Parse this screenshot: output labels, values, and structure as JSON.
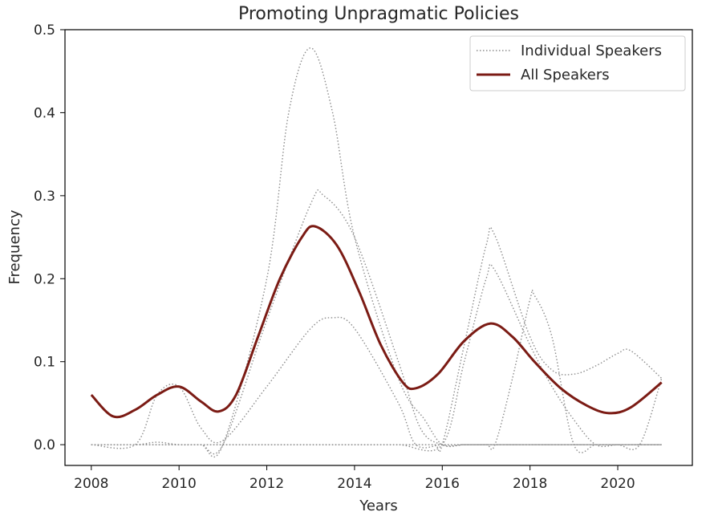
{
  "chart_data": {
    "type": "line",
    "title": "Promoting Unpragmatic Policies",
    "xlabel": "Years",
    "ylabel": "Frequency",
    "xlim": [
      2007.4,
      2021.7
    ],
    "ylim": [
      -0.025,
      0.5
    ],
    "x_ticks": [
      2008,
      2010,
      2012,
      2014,
      2016,
      2018,
      2020
    ],
    "y_ticks": [
      0.0,
      0.1,
      0.2,
      0.3,
      0.4,
      0.5
    ],
    "y_tick_labels": [
      "0.0",
      "0.1",
      "0.2",
      "0.3",
      "0.4",
      "0.5"
    ],
    "grid": false,
    "legend": {
      "position": "top-right",
      "entries": [
        {
          "label": "Individual Speakers",
          "style": "dotted",
          "color": "#8c8c8c"
        },
        {
          "label": "All Speakers",
          "style": "solid",
          "color": "#7b1b14"
        }
      ]
    },
    "series": [
      {
        "name": "Individual Speakers",
        "style": "dotted",
        "color": "#8c8c8c",
        "x": [
          2008,
          2009,
          2009.5,
          2010,
          2010.5,
          2011,
          2012,
          2012.5,
          2013,
          2013.5,
          2014,
          2015,
          2015.6,
          2016,
          2016.5,
          2017,
          2017.2,
          2017.6,
          2018,
          2018.5,
          2019,
          2019.5,
          2020,
          2020.5,
          2021
        ],
        "y": [
          0.0,
          0.0,
          0.003,
          0.0,
          0.0,
          0.0,
          0.2,
          0.4,
          0.478,
          0.4,
          0.25,
          0.08,
          0.03,
          0.0,
          0.0,
          0.0,
          0.0,
          0.0,
          0.0,
          0.0,
          0.0,
          0.0,
          0.0,
          0.0,
          0.0
        ]
      },
      {
        "name": "Individual Speakers",
        "style": "dotted",
        "color": "#8c8c8c",
        "x": [
          2008,
          2009,
          2010,
          2010.5,
          2011,
          2012,
          2013,
          2013.3,
          2014,
          2015,
          2015.5,
          2016,
          2016.5,
          2017,
          2017.2,
          2017.6,
          2018,
          2018.5,
          2019,
          2019.5,
          2020,
          2020.5,
          2021
        ],
        "y": [
          0.0,
          0.0,
          0.0,
          0.0,
          0.0,
          0.15,
          0.29,
          0.3,
          0.25,
          0.1,
          0.02,
          0.0,
          0.0,
          0.0,
          0.0,
          0.0,
          0.0,
          0.0,
          0.0,
          0.0,
          0.0,
          0.0,
          0.0
        ]
      },
      {
        "name": "Individual Speakers",
        "style": "dotted",
        "color": "#8c8c8c",
        "x": [
          2008,
          2009,
          2009.5,
          2010,
          2010.5,
          2011,
          2012,
          2013,
          2013.5,
          2014,
          2015,
          2015.4,
          2016,
          2016.5,
          2017,
          2017.2,
          2018,
          2019,
          2020,
          2020.5,
          2021
        ],
        "y": [
          0.0,
          0.0,
          0.06,
          0.07,
          0.02,
          0.005,
          0.07,
          0.14,
          0.153,
          0.14,
          0.05,
          0.0,
          0.0,
          0.0,
          0.0,
          0.0,
          0.0,
          0.0,
          0.0,
          0.0,
          0.0
        ]
      },
      {
        "name": "Individual Speakers",
        "style": "dotted",
        "color": "#8c8c8c",
        "x": [
          2008,
          2009,
          2010,
          2010.5,
          2011,
          2012,
          2013,
          2014,
          2015,
          2015.8,
          2016,
          2016.5,
          2017,
          2017.2,
          2018,
          2018.5,
          2019,
          2019.5,
          2020,
          2020.3,
          2021
        ],
        "y": [
          0.0,
          0.0,
          0.0,
          0.0,
          0.0,
          0.0,
          0.0,
          0.0,
          0.0,
          0.0,
          0.0,
          0.12,
          0.24,
          0.252,
          0.13,
          0.09,
          0.085,
          0.095,
          0.11,
          0.113,
          0.08
        ]
      },
      {
        "name": "Individual Speakers",
        "style": "dotted",
        "color": "#8c8c8c",
        "x": [
          2008,
          2009,
          2010,
          2011,
          2012,
          2013,
          2014,
          2015,
          2016,
          2016.5,
          2017,
          2017.2,
          2017.6,
          2018,
          2018.1,
          2018.5,
          2019,
          2019.5,
          2020,
          2020.5,
          2021
        ],
        "y": [
          0.0,
          0.0,
          0.0,
          0.0,
          0.0,
          0.0,
          0.0,
          0.0,
          0.0,
          0.0,
          0.0,
          0.0,
          0.08,
          0.175,
          0.18,
          0.13,
          0.0,
          0.0,
          0.0,
          0.0,
          0.0
        ]
      },
      {
        "name": "Individual Speakers",
        "style": "dotted",
        "color": "#8c8c8c",
        "x": [
          2008,
          2009,
          2010,
          2011,
          2012,
          2013,
          2014,
          2015,
          2016,
          2016.5,
          2017,
          2017.2,
          2018,
          2018.5,
          2019,
          2019.5,
          2020,
          2020.5,
          2021
        ],
        "y": [
          0.0,
          0.0,
          0.0,
          0.0,
          0.0,
          0.0,
          0.0,
          0.0,
          0.0,
          0.1,
          0.2,
          0.21,
          0.12,
          0.07,
          0.03,
          0.0,
          0.0,
          0.0,
          0.08
        ]
      },
      {
        "name": "All Speakers",
        "style": "solid",
        "color": "#7b1b14",
        "x": [
          2008,
          2008.5,
          2009,
          2009.5,
          2010,
          2010.5,
          2010.9,
          2011.3,
          2011.8,
          2012.3,
          2012.8,
          2013.1,
          2013.6,
          2014.1,
          2014.6,
          2015.1,
          2015.4,
          2015.9,
          2016.5,
          2017.1,
          2017.6,
          2018.1,
          2018.7,
          2019.3,
          2019.8,
          2020.3,
          2021
        ],
        "y": [
          0.06,
          0.034,
          0.042,
          0.06,
          0.07,
          0.052,
          0.04,
          0.06,
          0.13,
          0.2,
          0.25,
          0.263,
          0.24,
          0.185,
          0.12,
          0.075,
          0.068,
          0.085,
          0.125,
          0.146,
          0.13,
          0.1,
          0.068,
          0.047,
          0.038,
          0.045,
          0.075
        ]
      }
    ]
  }
}
